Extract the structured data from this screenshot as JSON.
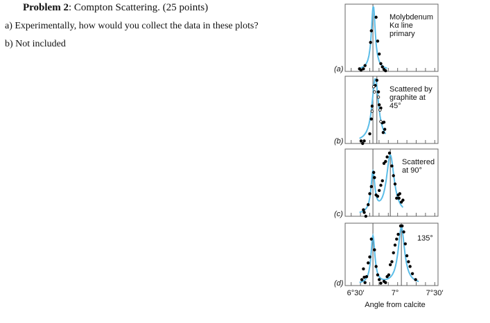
{
  "problem": {
    "heading": "Problem 2",
    "title": ": Compton Scattering. (25 points)",
    "parts": [
      "a) Experimentally, how would you collect the data in these plots?",
      "b) Not included"
    ]
  },
  "chart_data": {
    "type": "scatter",
    "xlabel": "Angle from calcite",
    "x_ticks": [
      "6°30′",
      "7°",
      "7°30′"
    ],
    "x_tick_values": [
      6.5,
      7.0,
      7.5
    ],
    "xlim": [
      6.37,
      7.54
    ],
    "ylim": [
      0,
      1.05
    ],
    "curve_color": "#5bbde8",
    "panels": [
      {
        "tag": "(a)",
        "labels": [
          "Molybdenum",
          "Kα line",
          "primary"
        ],
        "lines": [
          6.72
        ],
        "peaks": [
          {
            "c": 6.725,
            "h": 1.0,
            "w": 0.03
          }
        ],
        "dots": [
          [
            6.55,
            0.04
          ],
          [
            6.57,
            0.02
          ],
          [
            6.6,
            0.04
          ],
          [
            6.62,
            0.09
          ],
          [
            6.69,
            0.45
          ],
          [
            6.7,
            0.63
          ],
          [
            6.76,
            0.84
          ],
          [
            6.78,
            0.47
          ],
          [
            6.8,
            0.27
          ],
          [
            6.82,
            0.12
          ],
          [
            6.84,
            0.07
          ],
          [
            6.86,
            0.03
          ],
          [
            6.88,
            0.01
          ]
        ],
        "hollow": []
      },
      {
        "tag": "(b)",
        "labels": [
          "Scattered by",
          "graphite at",
          "45°"
        ],
        "lines": [
          6.72,
          6.77
        ],
        "peaks": [
          {
            "c": 6.75,
            "h": 1.0,
            "w": 0.05
          }
        ],
        "dots": [
          [
            6.57,
            0.04
          ],
          [
            6.59,
            0.0
          ],
          [
            6.61,
            0.04
          ],
          [
            6.68,
            0.15
          ],
          [
            6.7,
            0.38
          ],
          [
            6.71,
            0.58
          ],
          [
            6.75,
            0.9
          ],
          [
            6.77,
            0.98
          ],
          [
            6.79,
            0.8
          ],
          [
            6.8,
            0.6
          ],
          [
            6.82,
            0.55
          ],
          [
            6.84,
            0.32
          ],
          [
            6.86,
            0.33
          ],
          [
            6.87,
            0.22
          ],
          [
            6.85,
            0.17
          ]
        ],
        "hollow": [
          [
            6.73,
            0.88
          ],
          [
            6.74,
            0.8
          ],
          [
            6.71,
            0.5
          ],
          [
            6.79,
            0.72
          ],
          [
            6.81,
            0.52
          ],
          [
            6.82,
            0.34
          ]
        ]
      },
      {
        "tag": "(c)",
        "labels": [
          "Scattered",
          "at 90°"
        ],
        "lines": [
          6.72,
          6.94
        ],
        "peaks": [
          {
            "c": 6.72,
            "h": 0.62,
            "w": 0.03
          },
          {
            "c": 6.94,
            "h": 0.92,
            "w": 0.06
          }
        ],
        "dots": [
          [
            6.6,
            0.1
          ],
          [
            6.61,
            0.06
          ],
          [
            6.63,
            0.0
          ],
          [
            6.66,
            0.18
          ],
          [
            6.68,
            0.35
          ],
          [
            6.7,
            0.46
          ],
          [
            6.73,
            0.68
          ],
          [
            6.74,
            0.6
          ],
          [
            6.76,
            0.33
          ],
          [
            6.78,
            0.31
          ],
          [
            6.8,
            0.4
          ],
          [
            6.82,
            0.48
          ],
          [
            6.84,
            0.55
          ],
          [
            6.86,
            0.82
          ],
          [
            6.88,
            0.85
          ],
          [
            6.9,
            0.92
          ],
          [
            6.93,
            0.98
          ],
          [
            6.96,
            0.78
          ],
          [
            6.98,
            0.63
          ],
          [
            7.0,
            0.5
          ],
          [
            7.02,
            0.28
          ],
          [
            7.04,
            0.33
          ],
          [
            7.05,
            0.28
          ],
          [
            7.06,
            0.35
          ],
          [
            7.08,
            0.22
          ],
          [
            7.1,
            0.25
          ]
        ],
        "hollow": []
      },
      {
        "tag": "(d)",
        "labels": [
          "135°"
        ],
        "lines": [
          6.72,
          7.08
        ],
        "peaks": [
          {
            "c": 6.72,
            "h": 0.8,
            "w": 0.03
          },
          {
            "c": 7.08,
            "h": 0.95,
            "w": 0.05
          }
        ],
        "dots": [
          [
            6.58,
            0.1
          ],
          [
            6.6,
            0.28
          ],
          [
            6.61,
            0.14
          ],
          [
            6.62,
            0.05
          ],
          [
            6.64,
            0.15
          ],
          [
            6.66,
            0.38
          ],
          [
            6.68,
            0.48
          ],
          [
            6.7,
            0.78
          ],
          [
            6.74,
            0.6
          ],
          [
            6.76,
            0.32
          ],
          [
            6.78,
            0.18
          ],
          [
            6.8,
            0.1
          ],
          [
            6.82,
            0.04
          ],
          [
            6.86,
            0.07
          ],
          [
            6.88,
            0.05
          ],
          [
            6.9,
            0.15
          ],
          [
            6.92,
            0.18
          ],
          [
            6.94,
            0.35
          ],
          [
            6.96,
            0.4
          ],
          [
            6.98,
            0.55
          ],
          [
            7.0,
            0.68
          ],
          [
            7.02,
            0.78
          ],
          [
            7.04,
            0.86
          ],
          [
            7.07,
            1.0
          ],
          [
            7.09,
            1.0
          ],
          [
            7.11,
            0.9
          ],
          [
            7.13,
            0.7
          ],
          [
            7.15,
            0.5
          ],
          [
            7.17,
            0.4
          ],
          [
            7.19,
            0.32
          ],
          [
            7.22,
            0.2
          ],
          [
            7.26,
            0.1
          ]
        ],
        "hollow": []
      }
    ]
  }
}
